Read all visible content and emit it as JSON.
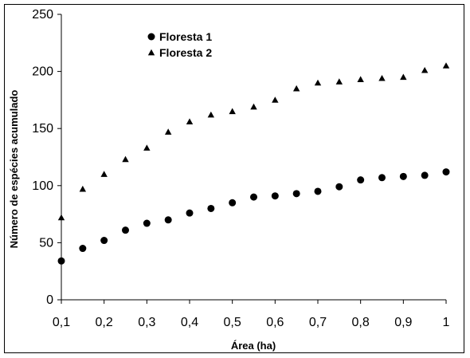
{
  "chart_data": {
    "type": "scatter",
    "title": "",
    "xlabel": "Área (ha)",
    "ylabel": "Número de espécies acumulado",
    "xlim": [
      0.1,
      1
    ],
    "ylim": [
      0,
      250
    ],
    "x_ticks": [
      "0,1",
      "0,2",
      "0,3",
      "0,4",
      "0,5",
      "0,6",
      "0,7",
      "0,8",
      "0,9",
      "1"
    ],
    "y_ticks": [
      "0",
      "50",
      "100",
      "150",
      "200",
      "250"
    ],
    "grid": false,
    "legend_position": "top-left",
    "series": [
      {
        "name": "Floresta 1",
        "marker": "circle",
        "x": [
          0.1,
          0.15,
          0.2,
          0.25,
          0.3,
          0.35,
          0.4,
          0.45,
          0.5,
          0.55,
          0.6,
          0.65,
          0.7,
          0.75,
          0.8,
          0.85,
          0.9,
          0.95,
          1.0
        ],
        "y": [
          34,
          45,
          52,
          61,
          67,
          70,
          76,
          80,
          85,
          90,
          91,
          93,
          95,
          99,
          105,
          107,
          108,
          109,
          112
        ]
      },
      {
        "name": "Floresta 2",
        "marker": "triangle",
        "x": [
          0.1,
          0.15,
          0.2,
          0.25,
          0.3,
          0.35,
          0.4,
          0.45,
          0.5,
          0.55,
          0.6,
          0.65,
          0.7,
          0.75,
          0.8,
          0.85,
          0.9,
          0.95,
          1.0
        ],
        "y": [
          72,
          97,
          110,
          123,
          133,
          147,
          156,
          162,
          165,
          169,
          175,
          185,
          190,
          191,
          193,
          194,
          195,
          201,
          205
        ]
      }
    ]
  }
}
